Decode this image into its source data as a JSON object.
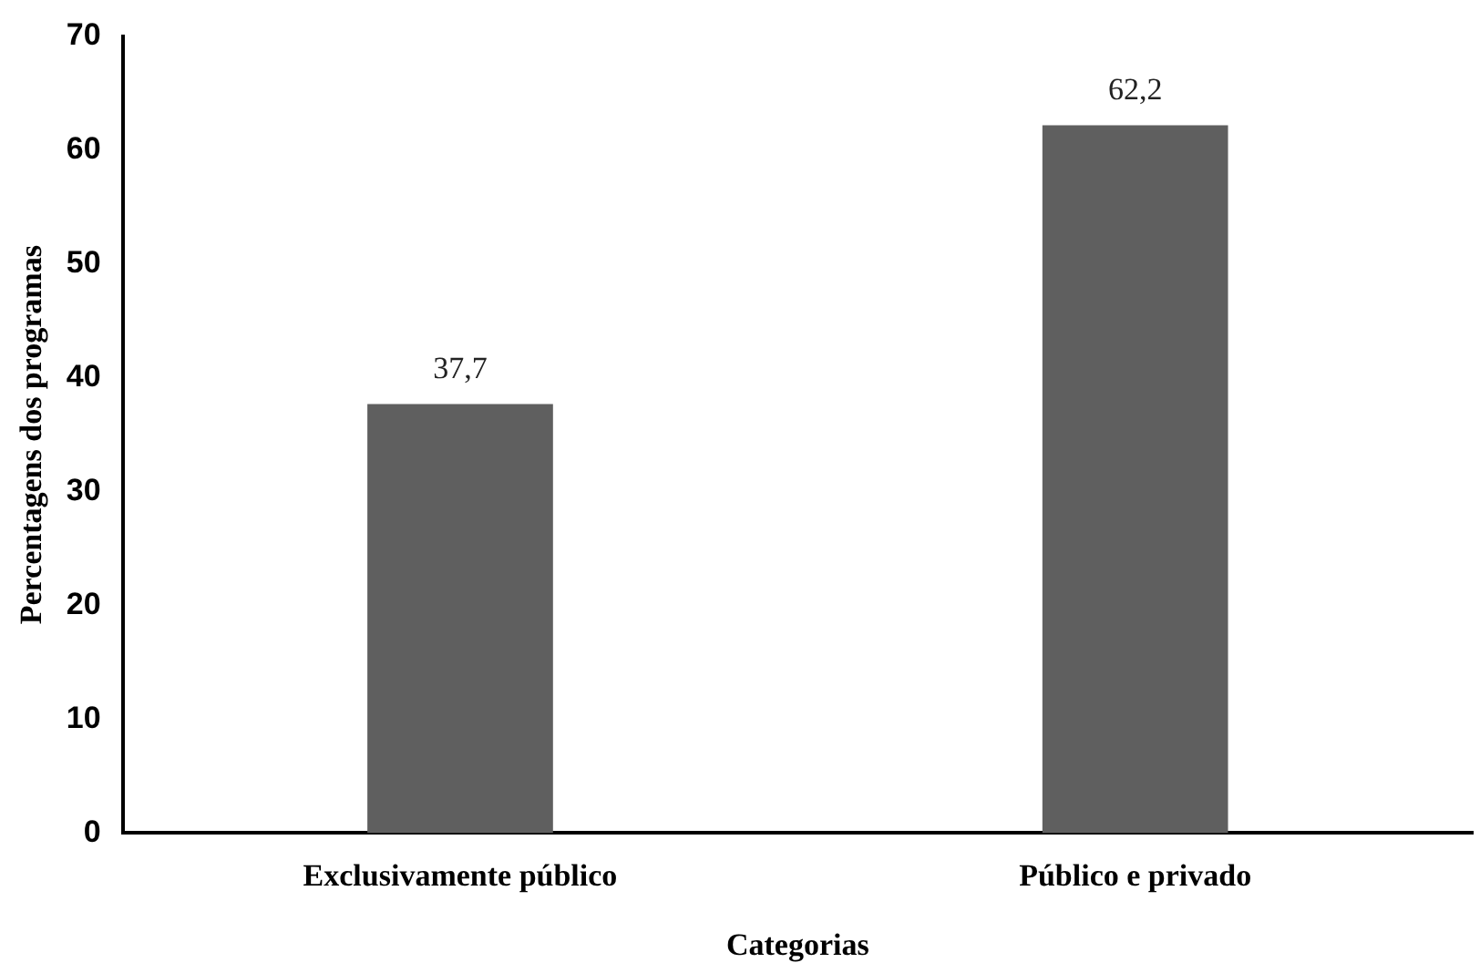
{
  "chart_data": {
    "type": "bar",
    "xlabel": "Categorias",
    "ylabel": "Percentagens dos programas",
    "categories": [
      "Exclusivamente público",
      "Público e privado"
    ],
    "values": [
      37.7,
      62.2
    ],
    "color": "#5f5f5f",
    "value_labels": [
      "37,7",
      "62,2"
    ],
    "ylim": [
      0,
      70
    ],
    "yticks": [
      0,
      10,
      20,
      30,
      40,
      50,
      60,
      70
    ],
    "grid": false,
    "legend": false
  }
}
